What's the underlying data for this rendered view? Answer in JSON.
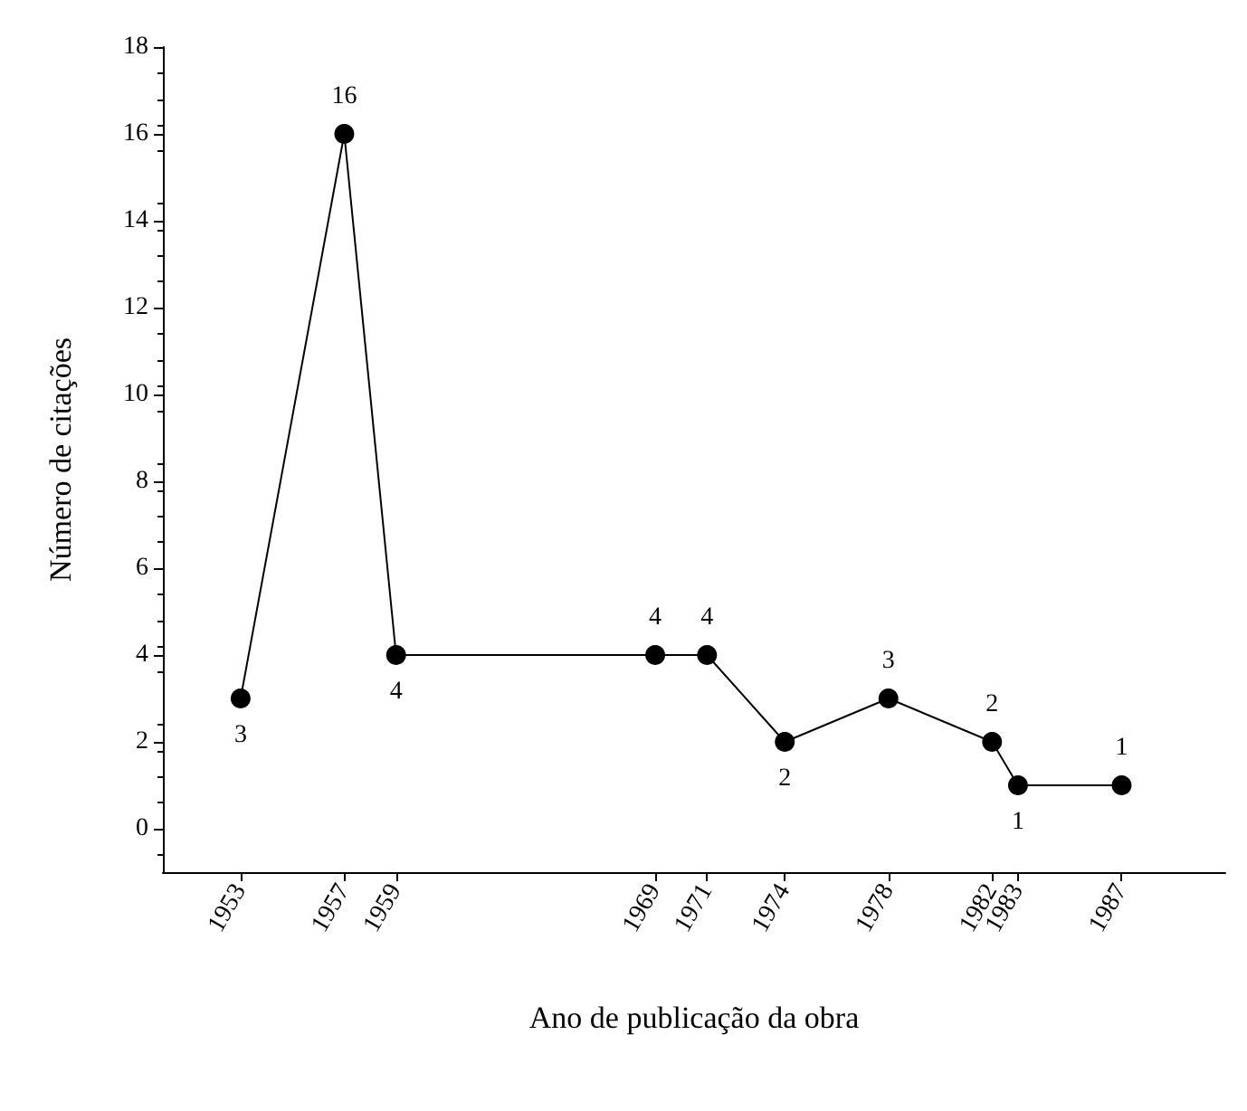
{
  "chart_data": {
    "type": "line",
    "xlabel": "Ano de publicação da obra",
    "ylabel": "Número de citações",
    "x": [
      1953,
      1957,
      1959,
      1969,
      1971,
      1974,
      1978,
      1982,
      1983,
      1987
    ],
    "series": [
      {
        "color": "#000000",
        "values": [
          3,
          16,
          4,
          4,
          4,
          2,
          3,
          2,
          1,
          1
        ]
      }
    ],
    "xlim": [
      1950,
      1991
    ],
    "xticks": [
      1953,
      1957,
      1959,
      1969,
      1971,
      1974,
      1978,
      1982,
      1983,
      1987
    ],
    "ylim": [
      -1,
      18
    ],
    "yticks": [
      0,
      2,
      4,
      6,
      8,
      10,
      12,
      14,
      16,
      18
    ],
    "data_labels": true,
    "marker": "circle",
    "line_style": "solid"
  }
}
